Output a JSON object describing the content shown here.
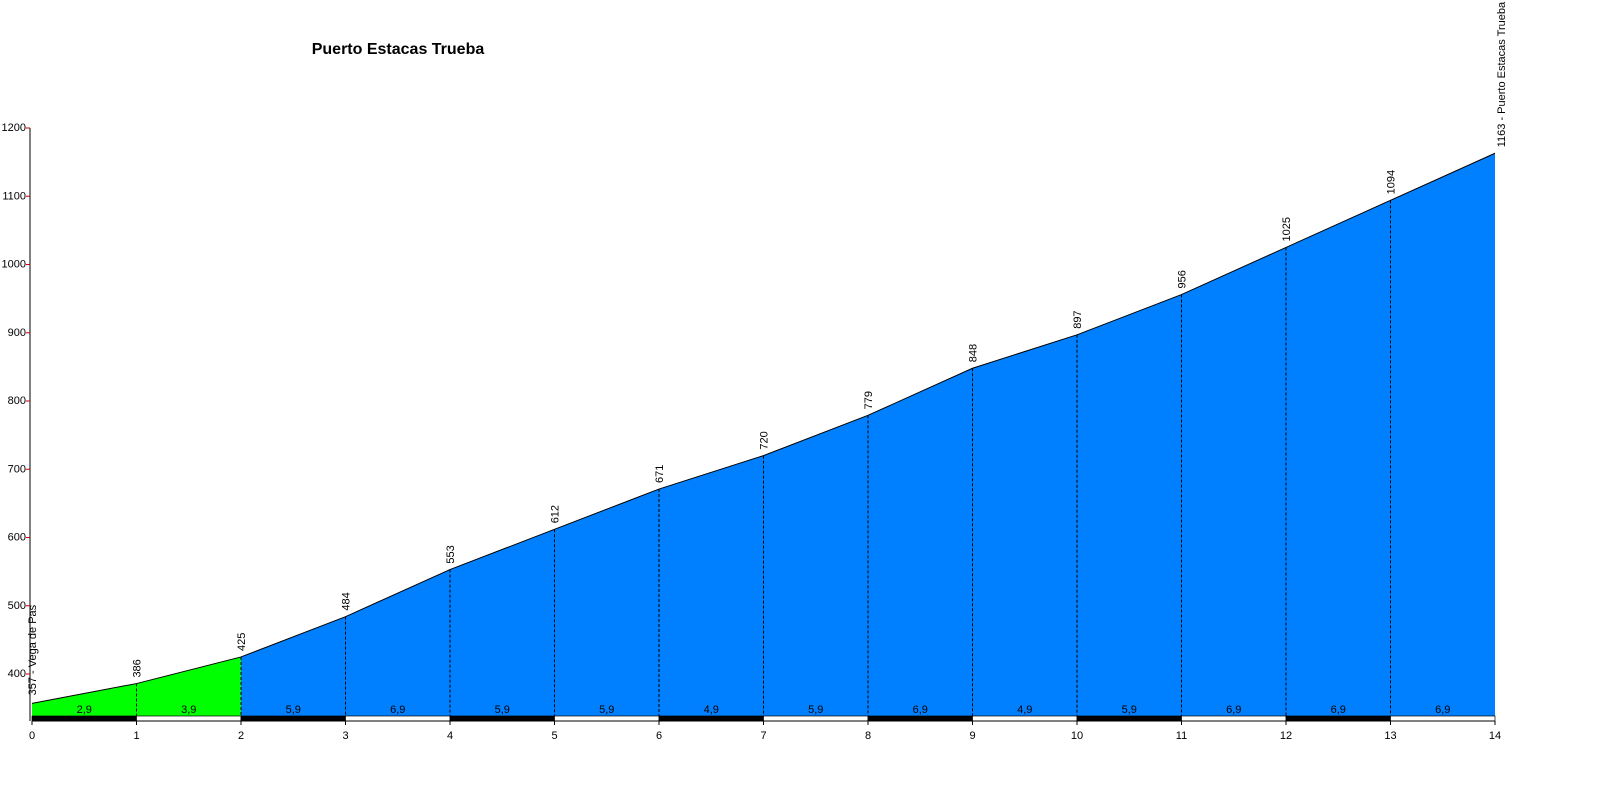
{
  "chart_data": {
    "type": "area",
    "title": "Puerto Estacas Trueba",
    "x": [
      0,
      1,
      2,
      3,
      4,
      5,
      6,
      7,
      8,
      9,
      10,
      11,
      12,
      13,
      14
    ],
    "values": [
      357,
      386,
      425,
      484,
      553,
      612,
      671,
      720,
      779,
      848,
      897,
      956,
      1025,
      1094,
      1163
    ],
    "value_labels": [
      "357 - Vega de Pas",
      "386",
      "425",
      "484",
      "553",
      "612",
      "671",
      "720",
      "779",
      "848",
      "897",
      "956",
      "1025",
      "1094",
      "1163 - Puerto Estacas Trueba"
    ],
    "segments": {
      "values": [
        2.9,
        3.9,
        5.9,
        6.9,
        5.9,
        5.9,
        4.9,
        5.9,
        6.9,
        4.9,
        5.9,
        6.9,
        6.9,
        6.9
      ],
      "value_labels": [
        "2,9",
        "3,9",
        "5,9",
        "6,9",
        "5,9",
        "5,9",
        "4,9",
        "5,9",
        "6,9",
        "4,9",
        "5,9",
        "6,9",
        "6,9",
        "6,9"
      ],
      "colors": [
        "#00ff00",
        "#00ff00",
        "#0080ff",
        "#0080ff",
        "#0080ff",
        "#0080ff",
        "#0080ff",
        "#0080ff",
        "#0080ff",
        "#0080ff",
        "#0080ff",
        "#0080ff",
        "#0080ff",
        "#0080ff"
      ]
    },
    "xlim": [
      0,
      14
    ],
    "xticks": [
      0,
      1,
      2,
      3,
      4,
      5,
      6,
      7,
      8,
      9,
      10,
      11,
      12,
      13,
      14
    ],
    "ylim": [
      337,
      1200
    ],
    "yticks": [
      400,
      500,
      600,
      700,
      800,
      900,
      1000,
      1100,
      1200
    ]
  }
}
